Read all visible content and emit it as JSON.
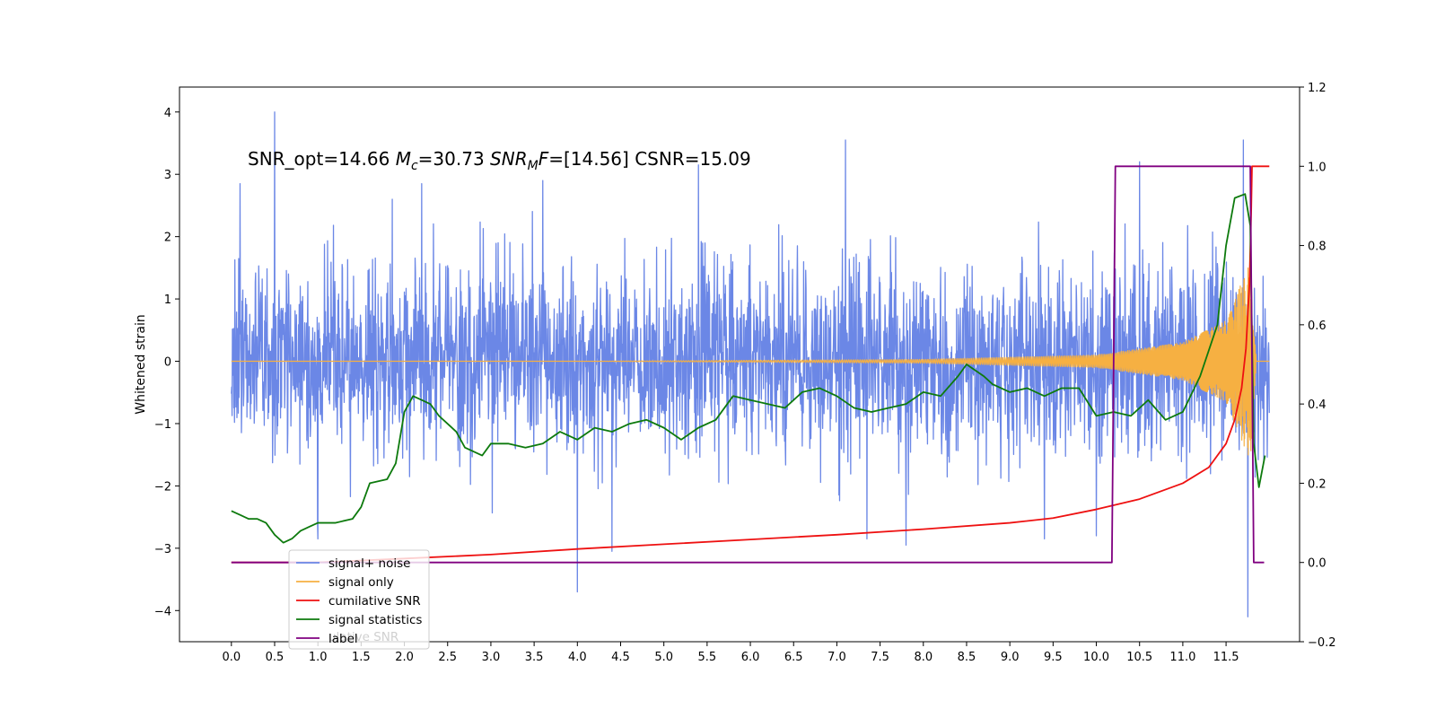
{
  "chart_data": {
    "type": "line",
    "title": "",
    "annotation": {
      "prefix": "SNR_opt=14.66 ",
      "mc_symbol": "M",
      "mc_sub": "c",
      "mc_value": "=30.73  ",
      "snr_symbol": "SNR",
      "snr_sub": "M",
      "snr_tail": "F",
      "snr_value": "=[14.56] CSNR=15.09"
    },
    "xlabel": "",
    "ylabel_left": "Whitened strain",
    "ylabel_right": "",
    "xlim": [
      -0.6,
      12.35
    ],
    "ylim_left": [
      -4.5,
      4.4
    ],
    "ylim_right": [
      -0.2,
      1.2
    ],
    "x_ticks": [
      0.0,
      0.5,
      1.0,
      1.5,
      2.0,
      2.5,
      3.0,
      3.5,
      4.0,
      4.5,
      5.0,
      5.5,
      6.0,
      6.5,
      7.0,
      7.5,
      8.0,
      8.5,
      9.0,
      9.5,
      10.0,
      10.5,
      11.0,
      11.5
    ],
    "x_tick_labels": [
      "0.0",
      "0.5",
      "1.0",
      "1.5",
      "2.0",
      "2.5",
      "3.0",
      "3.5",
      "4.0",
      "4.5",
      "5.0",
      "5.5",
      "6.0",
      "6.5",
      "7.0",
      "7.5",
      "8.0",
      "8.5",
      "9.0",
      "9.5",
      "10.0",
      "10.5",
      "11.0",
      "11.5"
    ],
    "y_left_ticks": [
      4,
      3,
      2,
      1,
      0,
      -1,
      -2,
      -3,
      -4
    ],
    "y_left_tick_labels": [
      "4",
      "3",
      "2",
      "1",
      "0",
      "−1",
      "−2",
      "−3",
      "−4"
    ],
    "y_right_ticks": [
      1.2,
      1.0,
      0.8,
      0.6,
      0.4,
      0.2,
      0.0,
      -0.2
    ],
    "y_right_tick_labels": [
      "1.2",
      "1.0",
      "0.8",
      "0.6",
      "0.4",
      "0.2",
      "0.0",
      "−0.2"
    ],
    "grid": false,
    "legend_placement": "lower-left",
    "legend_ghost_text": "ulative SNR",
    "series": [
      {
        "name": "signal+ noise",
        "axis": "left",
        "color": "#6b87e6",
        "style": "noise",
        "x_range": [
          0.0,
          12.0
        ],
        "envelope": [
          [
            0.0,
            1.5
          ],
          [
            12.0,
            1.5
          ]
        ],
        "spikes": [
          [
            0.5,
            4.0
          ],
          [
            0.1,
            2.85
          ],
          [
            1.0,
            -2.85
          ],
          [
            2.2,
            2.85
          ],
          [
            3.6,
            2.9
          ],
          [
            4.0,
            -3.7
          ],
          [
            4.4,
            -3.05
          ],
          [
            5.4,
            3.15
          ],
          [
            7.1,
            3.55
          ],
          [
            7.35,
            -2.85
          ],
          [
            7.8,
            -2.95
          ],
          [
            9.4,
            -2.85
          ],
          [
            10.0,
            -2.8
          ],
          [
            10.5,
            3.2
          ],
          [
            11.7,
            3.55
          ],
          [
            11.75,
            -4.1
          ]
        ]
      },
      {
        "name": "signal only",
        "axis": "left",
        "color": "#f6b042",
        "style": "chirp",
        "x_range": [
          0.0,
          12.0
        ],
        "amplitude_points": [
          [
            0.0,
            0.0
          ],
          [
            4.0,
            0.0
          ],
          [
            8.0,
            0.03
          ],
          [
            10.0,
            0.1
          ],
          [
            11.0,
            0.3
          ],
          [
            11.5,
            0.65
          ],
          [
            11.78,
            1.6
          ],
          [
            11.85,
            0.0
          ],
          [
            12.0,
            0.0
          ]
        ]
      },
      {
        "name": "cumilative SNR",
        "axis": "right",
        "color": "#ee1111",
        "points": [
          [
            0.0,
            0.0
          ],
          [
            1.0,
            0.0
          ],
          [
            2.0,
            0.01
          ],
          [
            3.0,
            0.02
          ],
          [
            4.0,
            0.034
          ],
          [
            5.0,
            0.046
          ],
          [
            6.0,
            0.058
          ],
          [
            7.0,
            0.07
          ],
          [
            8.0,
            0.084
          ],
          [
            9.0,
            0.1
          ],
          [
            9.5,
            0.112
          ],
          [
            10.0,
            0.134
          ],
          [
            10.5,
            0.16
          ],
          [
            11.0,
            0.2
          ],
          [
            11.3,
            0.24
          ],
          [
            11.5,
            0.3
          ],
          [
            11.6,
            0.36
          ],
          [
            11.68,
            0.44
          ],
          [
            11.73,
            0.54
          ],
          [
            11.77,
            0.7
          ],
          [
            11.79,
            0.88
          ],
          [
            11.8,
            1.0
          ],
          [
            12.0,
            1.0
          ]
        ]
      },
      {
        "name": "signal statistics",
        "axis": "right",
        "color": "#0d7a0d",
        "points": [
          [
            0.0,
            0.13
          ],
          [
            0.1,
            0.12
          ],
          [
            0.2,
            0.11
          ],
          [
            0.3,
            0.11
          ],
          [
            0.4,
            0.1
          ],
          [
            0.5,
            0.07
          ],
          [
            0.6,
            0.05
          ],
          [
            0.7,
            0.06
          ],
          [
            0.8,
            0.08
          ],
          [
            0.9,
            0.09
          ],
          [
            1.0,
            0.1
          ],
          [
            1.2,
            0.1
          ],
          [
            1.4,
            0.11
          ],
          [
            1.5,
            0.14
          ],
          [
            1.6,
            0.2
          ],
          [
            1.8,
            0.21
          ],
          [
            1.9,
            0.25
          ],
          [
            2.0,
            0.38
          ],
          [
            2.1,
            0.42
          ],
          [
            2.2,
            0.41
          ],
          [
            2.3,
            0.4
          ],
          [
            2.4,
            0.37
          ],
          [
            2.5,
            0.35
          ],
          [
            2.6,
            0.33
          ],
          [
            2.7,
            0.29
          ],
          [
            2.9,
            0.27
          ],
          [
            3.0,
            0.3
          ],
          [
            3.2,
            0.3
          ],
          [
            3.4,
            0.29
          ],
          [
            3.6,
            0.3
          ],
          [
            3.8,
            0.33
          ],
          [
            4.0,
            0.31
          ],
          [
            4.2,
            0.34
          ],
          [
            4.4,
            0.33
          ],
          [
            4.6,
            0.35
          ],
          [
            4.8,
            0.36
          ],
          [
            5.0,
            0.34
          ],
          [
            5.2,
            0.31
          ],
          [
            5.4,
            0.34
          ],
          [
            5.6,
            0.36
          ],
          [
            5.8,
            0.42
          ],
          [
            6.0,
            0.41
          ],
          [
            6.2,
            0.4
          ],
          [
            6.4,
            0.39
          ],
          [
            6.6,
            0.43
          ],
          [
            6.8,
            0.44
          ],
          [
            7.0,
            0.42
          ],
          [
            7.2,
            0.39
          ],
          [
            7.4,
            0.38
          ],
          [
            7.6,
            0.39
          ],
          [
            7.8,
            0.4
          ],
          [
            8.0,
            0.43
          ],
          [
            8.2,
            0.42
          ],
          [
            8.4,
            0.47
          ],
          [
            8.5,
            0.5
          ],
          [
            8.7,
            0.47
          ],
          [
            8.8,
            0.45
          ],
          [
            9.0,
            0.43
          ],
          [
            9.2,
            0.44
          ],
          [
            9.4,
            0.42
          ],
          [
            9.6,
            0.44
          ],
          [
            9.8,
            0.44
          ],
          [
            10.0,
            0.37
          ],
          [
            10.2,
            0.38
          ],
          [
            10.4,
            0.37
          ],
          [
            10.6,
            0.41
          ],
          [
            10.8,
            0.36
          ],
          [
            11.0,
            0.38
          ],
          [
            11.2,
            0.47
          ],
          [
            11.4,
            0.6
          ],
          [
            11.5,
            0.8
          ],
          [
            11.6,
            0.92
          ],
          [
            11.72,
            0.93
          ],
          [
            11.78,
            0.85
          ],
          [
            11.82,
            0.3
          ],
          [
            11.88,
            0.19
          ],
          [
            11.95,
            0.27
          ]
        ]
      },
      {
        "name": "label",
        "axis": "right",
        "color": "#800080",
        "points": [
          [
            0.0,
            0.0
          ],
          [
            10.18,
            0.0
          ],
          [
            10.22,
            1.0
          ],
          [
            11.78,
            1.0
          ],
          [
            11.82,
            0.0
          ],
          [
            11.94,
            0.0
          ]
        ]
      }
    ]
  }
}
